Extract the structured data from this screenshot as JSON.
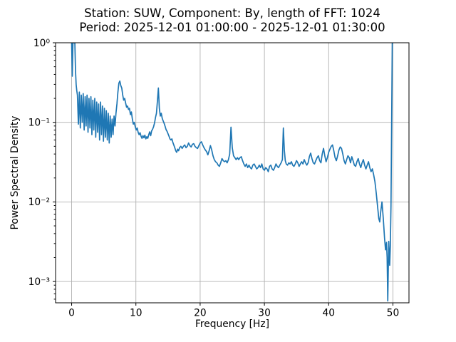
{
  "window": {
    "background": "#ffffff"
  },
  "figure": {
    "title_line1": "Station: SUW, Component: By, length of FFT: 1024",
    "title_line2": "Period: 2025-12-01 01:00:00 - 2025-12-01 01:30:00"
  },
  "chart_data": {
    "type": "line",
    "title": "Station: SUW, Component: By, length of FFT: 1024\nPeriod: 2025-12-01 01:00:00 - 2025-12-01 01:30:00",
    "xlabel": "Frequency [Hz]",
    "ylabel": "Power Spectral Density",
    "x_scale": "linear",
    "y_scale": "log",
    "xlim": [
      -2.5,
      52.5
    ],
    "ylim": [
      0.00054,
      1.0
    ],
    "grid": true,
    "legend": "none",
    "colors": {
      "line": "#1f77b4",
      "grid": "#b0b0b0",
      "spine": "#000000",
      "text": "#000000"
    },
    "xticks": {
      "values": [
        0,
        10,
        20,
        30,
        40,
        50
      ],
      "labels": [
        "0",
        "10",
        "20",
        "30",
        "40",
        "50"
      ]
    },
    "yticks": {
      "values": [
        1,
        0.1,
        0.01,
        0.001
      ],
      "labels": [
        "10⁰",
        "10⁻¹",
        "10⁻²",
        "10⁻³"
      ]
    },
    "series": [
      {
        "name": "psd",
        "points": [
          [
            0.0,
            1.0
          ],
          [
            0.1,
            0.38
          ],
          [
            0.2,
            1.0
          ],
          [
            0.5,
            1.0
          ],
          [
            0.6,
            0.45
          ],
          [
            0.7,
            0.3
          ],
          [
            0.8,
            0.25
          ],
          [
            0.9,
            0.22
          ],
          [
            1.05,
            0.095
          ],
          [
            1.2,
            0.24
          ],
          [
            1.35,
            0.085
          ],
          [
            1.5,
            0.22
          ],
          [
            1.65,
            0.1
          ],
          [
            1.8,
            0.23
          ],
          [
            1.95,
            0.08
          ],
          [
            2.1,
            0.21
          ],
          [
            2.25,
            0.09
          ],
          [
            2.4,
            0.22
          ],
          [
            2.55,
            0.075
          ],
          [
            2.7,
            0.2
          ],
          [
            2.85,
            0.085
          ],
          [
            3.0,
            0.21
          ],
          [
            3.15,
            0.07
          ],
          [
            3.3,
            0.19
          ],
          [
            3.45,
            0.08
          ],
          [
            3.6,
            0.2
          ],
          [
            3.75,
            0.065
          ],
          [
            3.9,
            0.18
          ],
          [
            4.05,
            0.075
          ],
          [
            4.2,
            0.17
          ],
          [
            4.35,
            0.06
          ],
          [
            4.5,
            0.18
          ],
          [
            4.65,
            0.07
          ],
          [
            4.8,
            0.16
          ],
          [
            4.95,
            0.058
          ],
          [
            5.1,
            0.15
          ],
          [
            5.25,
            0.065
          ],
          [
            5.4,
            0.14
          ],
          [
            5.55,
            0.06
          ],
          [
            5.7,
            0.13
          ],
          [
            5.85,
            0.055
          ],
          [
            6.0,
            0.12
          ],
          [
            6.15,
            0.065
          ],
          [
            6.3,
            0.11
          ],
          [
            6.45,
            0.07
          ],
          [
            6.6,
            0.12
          ],
          [
            6.75,
            0.09
          ],
          [
            6.9,
            0.13
          ],
          [
            7.05,
            0.17
          ],
          [
            7.2,
            0.24
          ],
          [
            7.35,
            0.31
          ],
          [
            7.5,
            0.33
          ],
          [
            7.65,
            0.29
          ],
          [
            7.8,
            0.27
          ],
          [
            7.95,
            0.22
          ],
          [
            8.1,
            0.19
          ],
          [
            8.25,
            0.2
          ],
          [
            8.4,
            0.175
          ],
          [
            8.55,
            0.155
          ],
          [
            8.7,
            0.16
          ],
          [
            8.85,
            0.145
          ],
          [
            9.0,
            0.15
          ],
          [
            9.15,
            0.125
          ],
          [
            9.3,
            0.135
          ],
          [
            9.45,
            0.11
          ],
          [
            9.6,
            0.095
          ],
          [
            9.75,
            0.1
          ],
          [
            9.9,
            0.088
          ],
          [
            10.05,
            0.08
          ],
          [
            10.2,
            0.085
          ],
          [
            10.35,
            0.075
          ],
          [
            10.5,
            0.07
          ],
          [
            10.65,
            0.074
          ],
          [
            10.8,
            0.067
          ],
          [
            10.95,
            0.063
          ],
          [
            11.1,
            0.068
          ],
          [
            11.25,
            0.064
          ],
          [
            11.4,
            0.069
          ],
          [
            11.55,
            0.062
          ],
          [
            11.7,
            0.066
          ],
          [
            11.85,
            0.063
          ],
          [
            12.0,
            0.07
          ],
          [
            12.15,
            0.076
          ],
          [
            12.3,
            0.068
          ],
          [
            12.45,
            0.078
          ],
          [
            12.6,
            0.082
          ],
          [
            12.75,
            0.088
          ],
          [
            12.9,
            0.098
          ],
          [
            13.05,
            0.115
          ],
          [
            13.2,
            0.13
          ],
          [
            13.35,
            0.185
          ],
          [
            13.5,
            0.27
          ],
          [
            13.65,
            0.15
          ],
          [
            13.8,
            0.12
          ],
          [
            13.95,
            0.13
          ],
          [
            14.1,
            0.112
          ],
          [
            14.25,
            0.104
          ],
          [
            14.4,
            0.097
          ],
          [
            14.55,
            0.089
          ],
          [
            14.7,
            0.081
          ],
          [
            14.85,
            0.077
          ],
          [
            15.0,
            0.072
          ],
          [
            15.15,
            0.067
          ],
          [
            15.3,
            0.062
          ],
          [
            15.45,
            0.06
          ],
          [
            15.6,
            0.062
          ],
          [
            15.75,
            0.056
          ],
          [
            15.9,
            0.052
          ],
          [
            16.05,
            0.048
          ],
          [
            16.2,
            0.044
          ],
          [
            16.35,
            0.042
          ],
          [
            16.5,
            0.046
          ],
          [
            16.65,
            0.044
          ],
          [
            16.8,
            0.048
          ],
          [
            17.0,
            0.05
          ],
          [
            17.2,
            0.047
          ],
          [
            17.4,
            0.05
          ],
          [
            17.6,
            0.052
          ],
          [
            17.8,
            0.048
          ],
          [
            18.0,
            0.05
          ],
          [
            18.2,
            0.055
          ],
          [
            18.4,
            0.051
          ],
          [
            18.6,
            0.049
          ],
          [
            18.8,
            0.053
          ],
          [
            19.0,
            0.054
          ],
          [
            19.2,
            0.05
          ],
          [
            19.4,
            0.048
          ],
          [
            19.6,
            0.047
          ],
          [
            19.8,
            0.051
          ],
          [
            20.0,
            0.055
          ],
          [
            20.2,
            0.057
          ],
          [
            20.4,
            0.052
          ],
          [
            20.6,
            0.048
          ],
          [
            20.8,
            0.045
          ],
          [
            21.0,
            0.043
          ],
          [
            21.2,
            0.039
          ],
          [
            21.4,
            0.044
          ],
          [
            21.6,
            0.051
          ],
          [
            21.8,
            0.045
          ],
          [
            22.0,
            0.038
          ],
          [
            22.2,
            0.034
          ],
          [
            22.4,
            0.032
          ],
          [
            22.6,
            0.031
          ],
          [
            22.8,
            0.029
          ],
          [
            23.0,
            0.028
          ],
          [
            23.2,
            0.031
          ],
          [
            23.4,
            0.035
          ],
          [
            23.6,
            0.033
          ],
          [
            23.8,
            0.032
          ],
          [
            24.0,
            0.033
          ],
          [
            24.2,
            0.031
          ],
          [
            24.4,
            0.034
          ],
          [
            24.6,
            0.04
          ],
          [
            24.8,
            0.087
          ],
          [
            25.0,
            0.048
          ],
          [
            25.2,
            0.038
          ],
          [
            25.4,
            0.036
          ],
          [
            25.6,
            0.034
          ],
          [
            25.8,
            0.036
          ],
          [
            26.0,
            0.034
          ],
          [
            26.2,
            0.036
          ],
          [
            26.4,
            0.037
          ],
          [
            26.6,
            0.033
          ],
          [
            26.8,
            0.03
          ],
          [
            27.0,
            0.028
          ],
          [
            27.2,
            0.03
          ],
          [
            27.4,
            0.027
          ],
          [
            27.6,
            0.029
          ],
          [
            27.8,
            0.027
          ],
          [
            28.0,
            0.026
          ],
          [
            28.2,
            0.029
          ],
          [
            28.4,
            0.03
          ],
          [
            28.6,
            0.028
          ],
          [
            28.8,
            0.026
          ],
          [
            29.0,
            0.027
          ],
          [
            29.2,
            0.029
          ],
          [
            29.4,
            0.027
          ],
          [
            29.6,
            0.03
          ],
          [
            29.8,
            0.026
          ],
          [
            30.0,
            0.025
          ],
          [
            30.2,
            0.027
          ],
          [
            30.4,
            0.026
          ],
          [
            30.6,
            0.024
          ],
          [
            30.8,
            0.028
          ],
          [
            31.0,
            0.029
          ],
          [
            31.2,
            0.026
          ],
          [
            31.4,
            0.025
          ],
          [
            31.6,
            0.027
          ],
          [
            31.8,
            0.03
          ],
          [
            32.0,
            0.028
          ],
          [
            32.2,
            0.027
          ],
          [
            32.4,
            0.029
          ],
          [
            32.6,
            0.031
          ],
          [
            32.8,
            0.034
          ],
          [
            32.95,
            0.085
          ],
          [
            33.1,
            0.045
          ],
          [
            33.25,
            0.033
          ],
          [
            33.4,
            0.03
          ],
          [
            33.6,
            0.029
          ],
          [
            33.8,
            0.031
          ],
          [
            34.0,
            0.03
          ],
          [
            34.2,
            0.032
          ],
          [
            34.4,
            0.029
          ],
          [
            34.6,
            0.028
          ],
          [
            34.8,
            0.03
          ],
          [
            35.0,
            0.033
          ],
          [
            35.2,
            0.031
          ],
          [
            35.4,
            0.028
          ],
          [
            35.6,
            0.03
          ],
          [
            35.8,
            0.032
          ],
          [
            36.0,
            0.03
          ],
          [
            36.2,
            0.034
          ],
          [
            36.4,
            0.031
          ],
          [
            36.6,
            0.029
          ],
          [
            36.8,
            0.031
          ],
          [
            37.0,
            0.037
          ],
          [
            37.2,
            0.041
          ],
          [
            37.4,
            0.035
          ],
          [
            37.6,
            0.031
          ],
          [
            37.8,
            0.03
          ],
          [
            38.0,
            0.033
          ],
          [
            38.2,
            0.036
          ],
          [
            38.4,
            0.038
          ],
          [
            38.6,
            0.033
          ],
          [
            38.8,
            0.031
          ],
          [
            39.0,
            0.04
          ],
          [
            39.2,
            0.047
          ],
          [
            39.4,
            0.038
          ],
          [
            39.6,
            0.032
          ],
          [
            39.8,
            0.036
          ],
          [
            40.0,
            0.042
          ],
          [
            40.2,
            0.046
          ],
          [
            40.4,
            0.05
          ],
          [
            40.6,
            0.052
          ],
          [
            40.8,
            0.044
          ],
          [
            41.0,
            0.036
          ],
          [
            41.2,
            0.033
          ],
          [
            41.4,
            0.038
          ],
          [
            41.6,
            0.045
          ],
          [
            41.8,
            0.049
          ],
          [
            42.0,
            0.047
          ],
          [
            42.2,
            0.04
          ],
          [
            42.4,
            0.033
          ],
          [
            42.6,
            0.03
          ],
          [
            42.8,
            0.034
          ],
          [
            43.0,
            0.038
          ],
          [
            43.2,
            0.036
          ],
          [
            43.4,
            0.031
          ],
          [
            43.6,
            0.037
          ],
          [
            43.8,
            0.033
          ],
          [
            44.0,
            0.029
          ],
          [
            44.2,
            0.028
          ],
          [
            44.4,
            0.032
          ],
          [
            44.6,
            0.035
          ],
          [
            44.8,
            0.03
          ],
          [
            45.0,
            0.027
          ],
          [
            45.2,
            0.031
          ],
          [
            45.4,
            0.034
          ],
          [
            45.6,
            0.029
          ],
          [
            45.8,
            0.026
          ],
          [
            46.0,
            0.029
          ],
          [
            46.2,
            0.032
          ],
          [
            46.4,
            0.027
          ],
          [
            46.6,
            0.024
          ],
          [
            46.8,
            0.026
          ],
          [
            47.0,
            0.022
          ],
          [
            47.2,
            0.018
          ],
          [
            47.4,
            0.013
          ],
          [
            47.6,
            0.009
          ],
          [
            47.8,
            0.0062
          ],
          [
            47.95,
            0.0056
          ],
          [
            48.1,
            0.0075
          ],
          [
            48.3,
            0.01
          ],
          [
            48.5,
            0.0062
          ],
          [
            48.7,
            0.0035
          ],
          [
            48.85,
            0.0025
          ],
          [
            49.0,
            0.0031
          ],
          [
            49.1,
            0.002
          ],
          [
            49.2,
            0.00057
          ],
          [
            49.35,
            0.0032
          ],
          [
            49.5,
            0.0016
          ],
          [
            49.6,
            0.0028
          ],
          [
            49.7,
            0.009
          ],
          [
            49.8,
            0.09
          ],
          [
            49.9,
            1.0
          ],
          [
            50.0,
            1.0
          ]
        ]
      }
    ]
  }
}
